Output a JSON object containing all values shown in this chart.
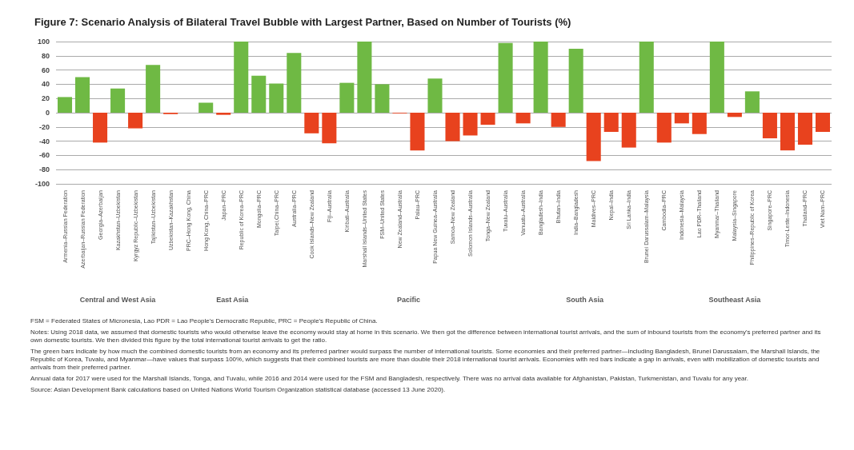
{
  "chart_data": {
    "type": "bar",
    "title": "Figure 7: Scenario Analysis of Bilateral Travel Bubble with Largest Partner, Based on Number of Tourists (%)",
    "categories": [
      "Armenia–Russian Federation",
      "Azerbaijan–Russian Federation",
      "Georgia–Azerbaijan",
      "Kazakhstan–Uzbekistan",
      "Kyrgyz Republic–Uzbekistan",
      "Tajikistan–Uzbekistan",
      "Uzbekistan–Kazakhstan",
      "PRC–Hong Kong, China",
      "Hong Kong, China–PRC",
      "Japan–PRC",
      "Republic of Korea–PRC",
      "Mongolia–PRC",
      "Taipei,China–PRC",
      "Australia–PRC",
      "Cook Islands–New Zealand",
      "Fiji–Australia",
      "Kiribati–Australia",
      "Marshall Islands–United States",
      "FSM–United States",
      "New Zealand–Australia",
      "Palau–PRC",
      "Papua New Guinea–Australia",
      "Samoa–New Zealand",
      "Solomon Islands–Australia",
      "Tonga–New Zealand",
      "Tuvalu–Australia",
      "Vanuatu–Australia",
      "Bangladesh–India",
      "Bhutan–India",
      "India–Bangladesh",
      "Maldives–PRC",
      "Nepal–India",
      "Sri Lanka–India",
      "Brunei Darussalam–Malaysia",
      "Cambodia–PRC",
      "Indonesia–Malaysia",
      "Lao PDR–Thailand",
      "Myanmar–Thailand",
      "Malaysia–Singapore",
      "Philippines–Republic of Korea",
      "Singapore–PRC",
      "Timor-Leste–Indonesia",
      "Thailand–PRC",
      "Viet Nam–PRC"
    ],
    "values": [
      22,
      50,
      -42,
      34,
      -22,
      67,
      -2,
      null,
      14,
      -3,
      100,
      52,
      41,
      84,
      -29,
      -43,
      42,
      100,
      40,
      -1,
      -53,
      48,
      -40,
      -32,
      -17,
      98,
      -15,
      100,
      -20,
      90,
      -68,
      -27,
      -49,
      100,
      -42,
      -15,
      -30,
      100,
      -6,
      30,
      -36,
      -53,
      -45,
      -27
    ],
    "colors": [
      "#6fb944",
      "#6fb944",
      "#e8421e",
      "#6fb944",
      "#e8421e",
      "#6fb944",
      "#e8421e",
      "#6fb944",
      "#6fb944",
      "#e8421e",
      "#6fb944",
      "#6fb944",
      "#6fb944",
      "#6fb944",
      "#e8421e",
      "#e8421e",
      "#6fb944",
      "#6fb944",
      "#6fb944",
      "#e8421e",
      "#e8421e",
      "#6fb944",
      "#e8421e",
      "#e8421e",
      "#e8421e",
      "#6fb944",
      "#e8421e",
      "#6fb944",
      "#e8421e",
      "#6fb944",
      "#e8421e",
      "#e8421e",
      "#e8421e",
      "#6fb944",
      "#e8421e",
      "#e8421e",
      "#e8421e",
      "#6fb944",
      "#e8421e",
      "#6fb944",
      "#e8421e",
      "#e8421e",
      "#e8421e",
      "#e8421e"
    ],
    "ylim": [
      -100,
      100
    ],
    "yticks": [
      -100,
      -80,
      -60,
      -40,
      -20,
      0,
      20,
      40,
      60,
      80,
      100
    ],
    "grid": "y",
    "annotations": [
      "Central and West Asia",
      "East Asia",
      "Pacific",
      "South Asia",
      "Southeast Asia",
      "FSM = Federated States of Micronesia, Lao PDR = Lao People's Democratic Republic, PRC = People's Republic of China.",
      "Notes: Using 2018 data, we assumed that domestic tourists who would otherwise leave the economy would stay at home in this scenario. We then got the difference between international tourist arrivals, and the sum of inbound tourists from the economy's preferred partner and its own domestic tourists. We then divided this figure by the total international tourist arrivals to get the ratio.",
      "The green bars indicate by how much the combined domestic tourists from an economy and its preferred partner would surpass the number of international tourists. Some economies and their preferred partner—including Bangladesh, Brunei Darussalam, the Marshall Islands, the Republic of Korea, Tuvalu, and Myanmar—have values that surpass 100%, which suggests that their combined tourists are more than double their 2018 international tourist arrivals. Economies with red bars indicate a gap in arrivals, even with mobilization of domestic tourists and arrivals from their preferred partner.",
      "Annual data for 2017 were used for the Marshall Islands, Tonga, and Tuvalu, while 2016 and 2014 were used for the FSM and Bangladesh, respectively. There was no arrival data available for Afghanistan, Pakistan, Turkmenistan, and Tuvalu for any year.",
      "Source: Asian Development Bank calculations based on United Nations World Tourism Organization statistical database (accessed 13 June 2020)."
    ]
  }
}
